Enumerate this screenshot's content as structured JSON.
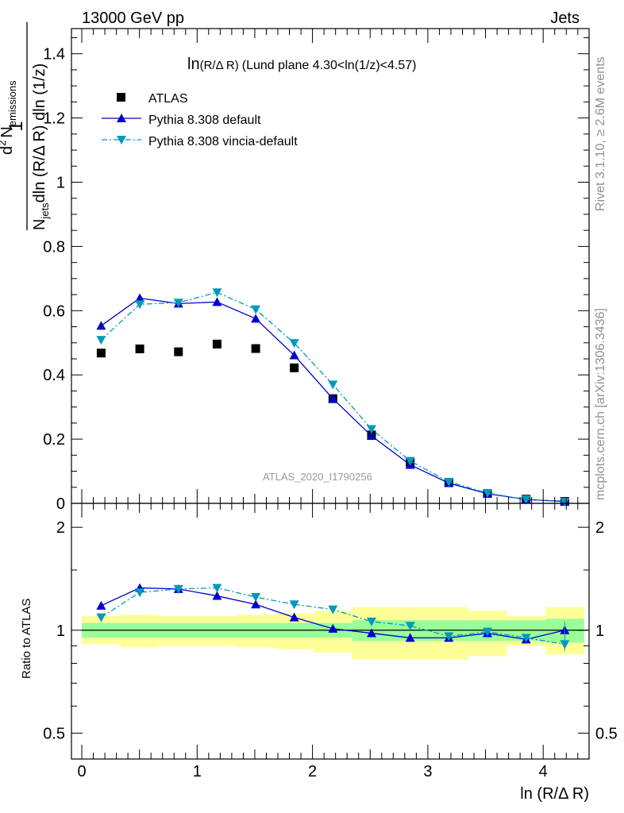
{
  "header": {
    "left": "13000 GeV pp",
    "right": "Jets"
  },
  "side_labels": {
    "rivet": "Rivet 3.1.10, ≥ 2.6M events",
    "mcplots": "mcplots.cern.ch [arXiv:1306.3436]"
  },
  "chart_data": [
    {
      "type": "scatter",
      "panel": "main",
      "title_prefix": "ln",
      "title_sub": "(R/Δ R)",
      "title_rest": "(Lund plane 4.30<ln(1/z)<4.57)",
      "watermark": "ATLAS_2020_I1790256",
      "ylabel": {
        "one": "1",
        "N": "N",
        "jets": "jets",
        "mid": "dln (R/Δ R) dln (1/z)",
        "d2": "d",
        "sup2": "2",
        "Nemis": "N",
        "emissions": "emissions"
      },
      "xlim": [
        -0.1,
        4.4
      ],
      "ylim": [
        0,
        1.5
      ],
      "yticks": [
        {
          "v": 0,
          "label": "0"
        },
        {
          "v": 0.2,
          "label": "0.2"
        },
        {
          "v": 0.4,
          "label": "0.4"
        },
        {
          "v": 0.6,
          "label": "0.6"
        },
        {
          "v": 0.8,
          "label": "0.8"
        },
        {
          "v": 1.0,
          "label": "1"
        },
        {
          "v": 1.2,
          "label": "1.2"
        },
        {
          "v": 1.4,
          "label": "1.4"
        }
      ],
      "x": [
        0.168,
        0.503,
        0.838,
        1.173,
        1.508,
        1.842,
        2.177,
        2.512,
        2.847,
        3.182,
        3.517,
        3.852,
        4.187
      ],
      "series": [
        {
          "name": "ATLAS",
          "marker": "square",
          "color": "#000000",
          "values": [
            0.468,
            0.481,
            0.472,
            0.496,
            0.482,
            0.422,
            0.326,
            0.213,
            0.127,
            0.065,
            0.031,
            0.013,
            0.006
          ]
        },
        {
          "name": "Pythia 8.308 default",
          "marker": "triangle-up",
          "color": "#0000cc",
          "line": "solid",
          "values": [
            0.553,
            0.639,
            0.622,
            0.627,
            0.575,
            0.461,
            0.326,
            0.21,
            0.12,
            0.063,
            0.03,
            0.012,
            0.006
          ]
        },
        {
          "name": "Pythia 8.308 vincia-default",
          "marker": "triangle-down",
          "color": "#0099bb",
          "line": "dashdot",
          "values": [
            0.509,
            0.62,
            0.625,
            0.657,
            0.604,
            0.499,
            0.37,
            0.231,
            0.132,
            0.067,
            0.032,
            0.012,
            0.005
          ]
        }
      ],
      "legend": "top-left"
    },
    {
      "type": "line",
      "panel": "ratio",
      "ylabel": "Ratio to ATLAS",
      "xlabel": "ln (R/Δ R)",
      "scale": "log",
      "ylim": [
        0.42,
        2.35
      ],
      "yticks": [
        {
          "v": 0.5,
          "label": "0.5"
        },
        {
          "v": 1,
          "label": "1"
        },
        {
          "v": 2,
          "label": "2"
        }
      ],
      "xticks": [
        {
          "v": 0,
          "label": "0"
        },
        {
          "v": 1,
          "label": "1"
        },
        {
          "v": 2,
          "label": "2"
        },
        {
          "v": 3,
          "label": "3"
        },
        {
          "v": 4,
          "label": "4"
        }
      ],
      "bin_edges": [
        0,
        0.335,
        0.67,
        1.005,
        1.34,
        1.675,
        2.01,
        2.345,
        2.68,
        3.015,
        3.35,
        3.685,
        4.02,
        4.355
      ],
      "band_outer": [
        [
          0.91,
          1.1
        ],
        [
          0.89,
          1.11
        ],
        [
          0.9,
          1.1
        ],
        [
          0.9,
          1.1
        ],
        [
          0.89,
          1.11
        ],
        [
          0.88,
          1.12
        ],
        [
          0.86,
          1.14
        ],
        [
          0.82,
          1.17
        ],
        [
          0.82,
          1.17
        ],
        [
          0.82,
          1.17
        ],
        [
          0.84,
          1.14
        ],
        [
          0.9,
          1.1
        ],
        [
          0.85,
          1.17
        ]
      ],
      "band_inner": [
        [
          0.95,
          1.05
        ],
        [
          0.95,
          1.05
        ],
        [
          0.95,
          1.05
        ],
        [
          0.95,
          1.05
        ],
        [
          0.95,
          1.05
        ],
        [
          0.95,
          1.05
        ],
        [
          0.95,
          1.05
        ],
        [
          0.93,
          1.07
        ],
        [
          0.93,
          1.07
        ],
        [
          0.93,
          1.07
        ],
        [
          0.93,
          1.07
        ],
        [
          0.93,
          1.07
        ],
        [
          0.92,
          1.08
        ]
      ],
      "reference": 1,
      "x": [
        0.168,
        0.503,
        0.838,
        1.173,
        1.508,
        1.842,
        2.177,
        2.512,
        2.847,
        3.182,
        3.517,
        3.852,
        4.187
      ],
      "series": [
        {
          "name": "Pythia 8.308 default",
          "marker": "triangle-up",
          "color": "#0000cc",
          "line": "solid",
          "values": [
            1.18,
            1.33,
            1.32,
            1.26,
            1.19,
            1.09,
            1.01,
            0.98,
            0.95,
            0.95,
            0.98,
            0.94,
            1.0
          ]
        },
        {
          "name": "Pythia 8.308 vincia-default",
          "marker": "triangle-down",
          "color": "#0099bb",
          "line": "dashdot",
          "values": [
            1.09,
            1.29,
            1.32,
            1.33,
            1.25,
            1.19,
            1.15,
            1.06,
            1.03,
            0.96,
            0.99,
            0.95,
            0.91
          ]
        }
      ]
    }
  ]
}
